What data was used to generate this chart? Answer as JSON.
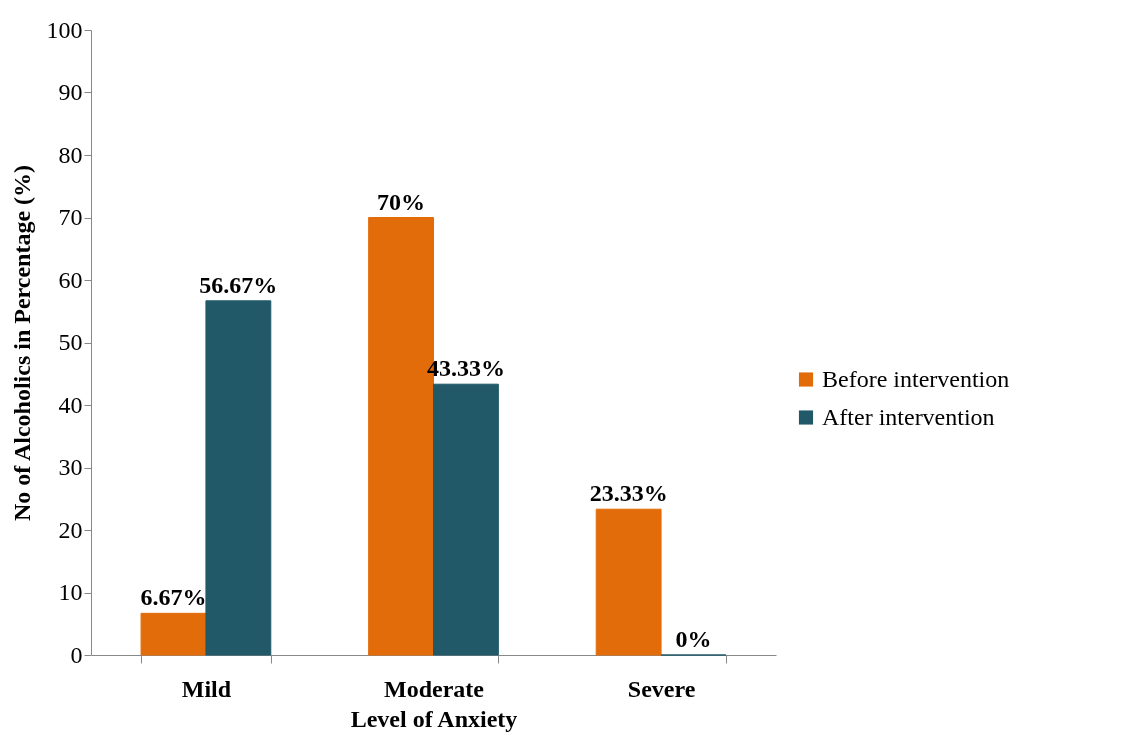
{
  "chart_data": {
    "type": "bar",
    "xlabel": "Level of Anxiety",
    "ylabel": "No of Alcoholics in Percentage (%)",
    "categories": [
      "Mild",
      "Moderate",
      "Severe"
    ],
    "series": [
      {
        "name": "Before intervention",
        "color": "#e36c0a",
        "values": [
          6.67,
          70,
          23.33
        ],
        "value_labels": [
          "6.67%",
          "70%",
          "23.33%"
        ]
      },
      {
        "name": "After intervention",
        "color": "#215968",
        "values": [
          56.67,
          43.33,
          0
        ],
        "value_labels": [
          "56.67%",
          "43.33%",
          "0%"
        ]
      }
    ],
    "ylim": [
      0,
      100
    ],
    "yticks": [
      0,
      10,
      20,
      30,
      40,
      50,
      60,
      70,
      80,
      90,
      100
    ],
    "grid": false,
    "legend": "right"
  }
}
